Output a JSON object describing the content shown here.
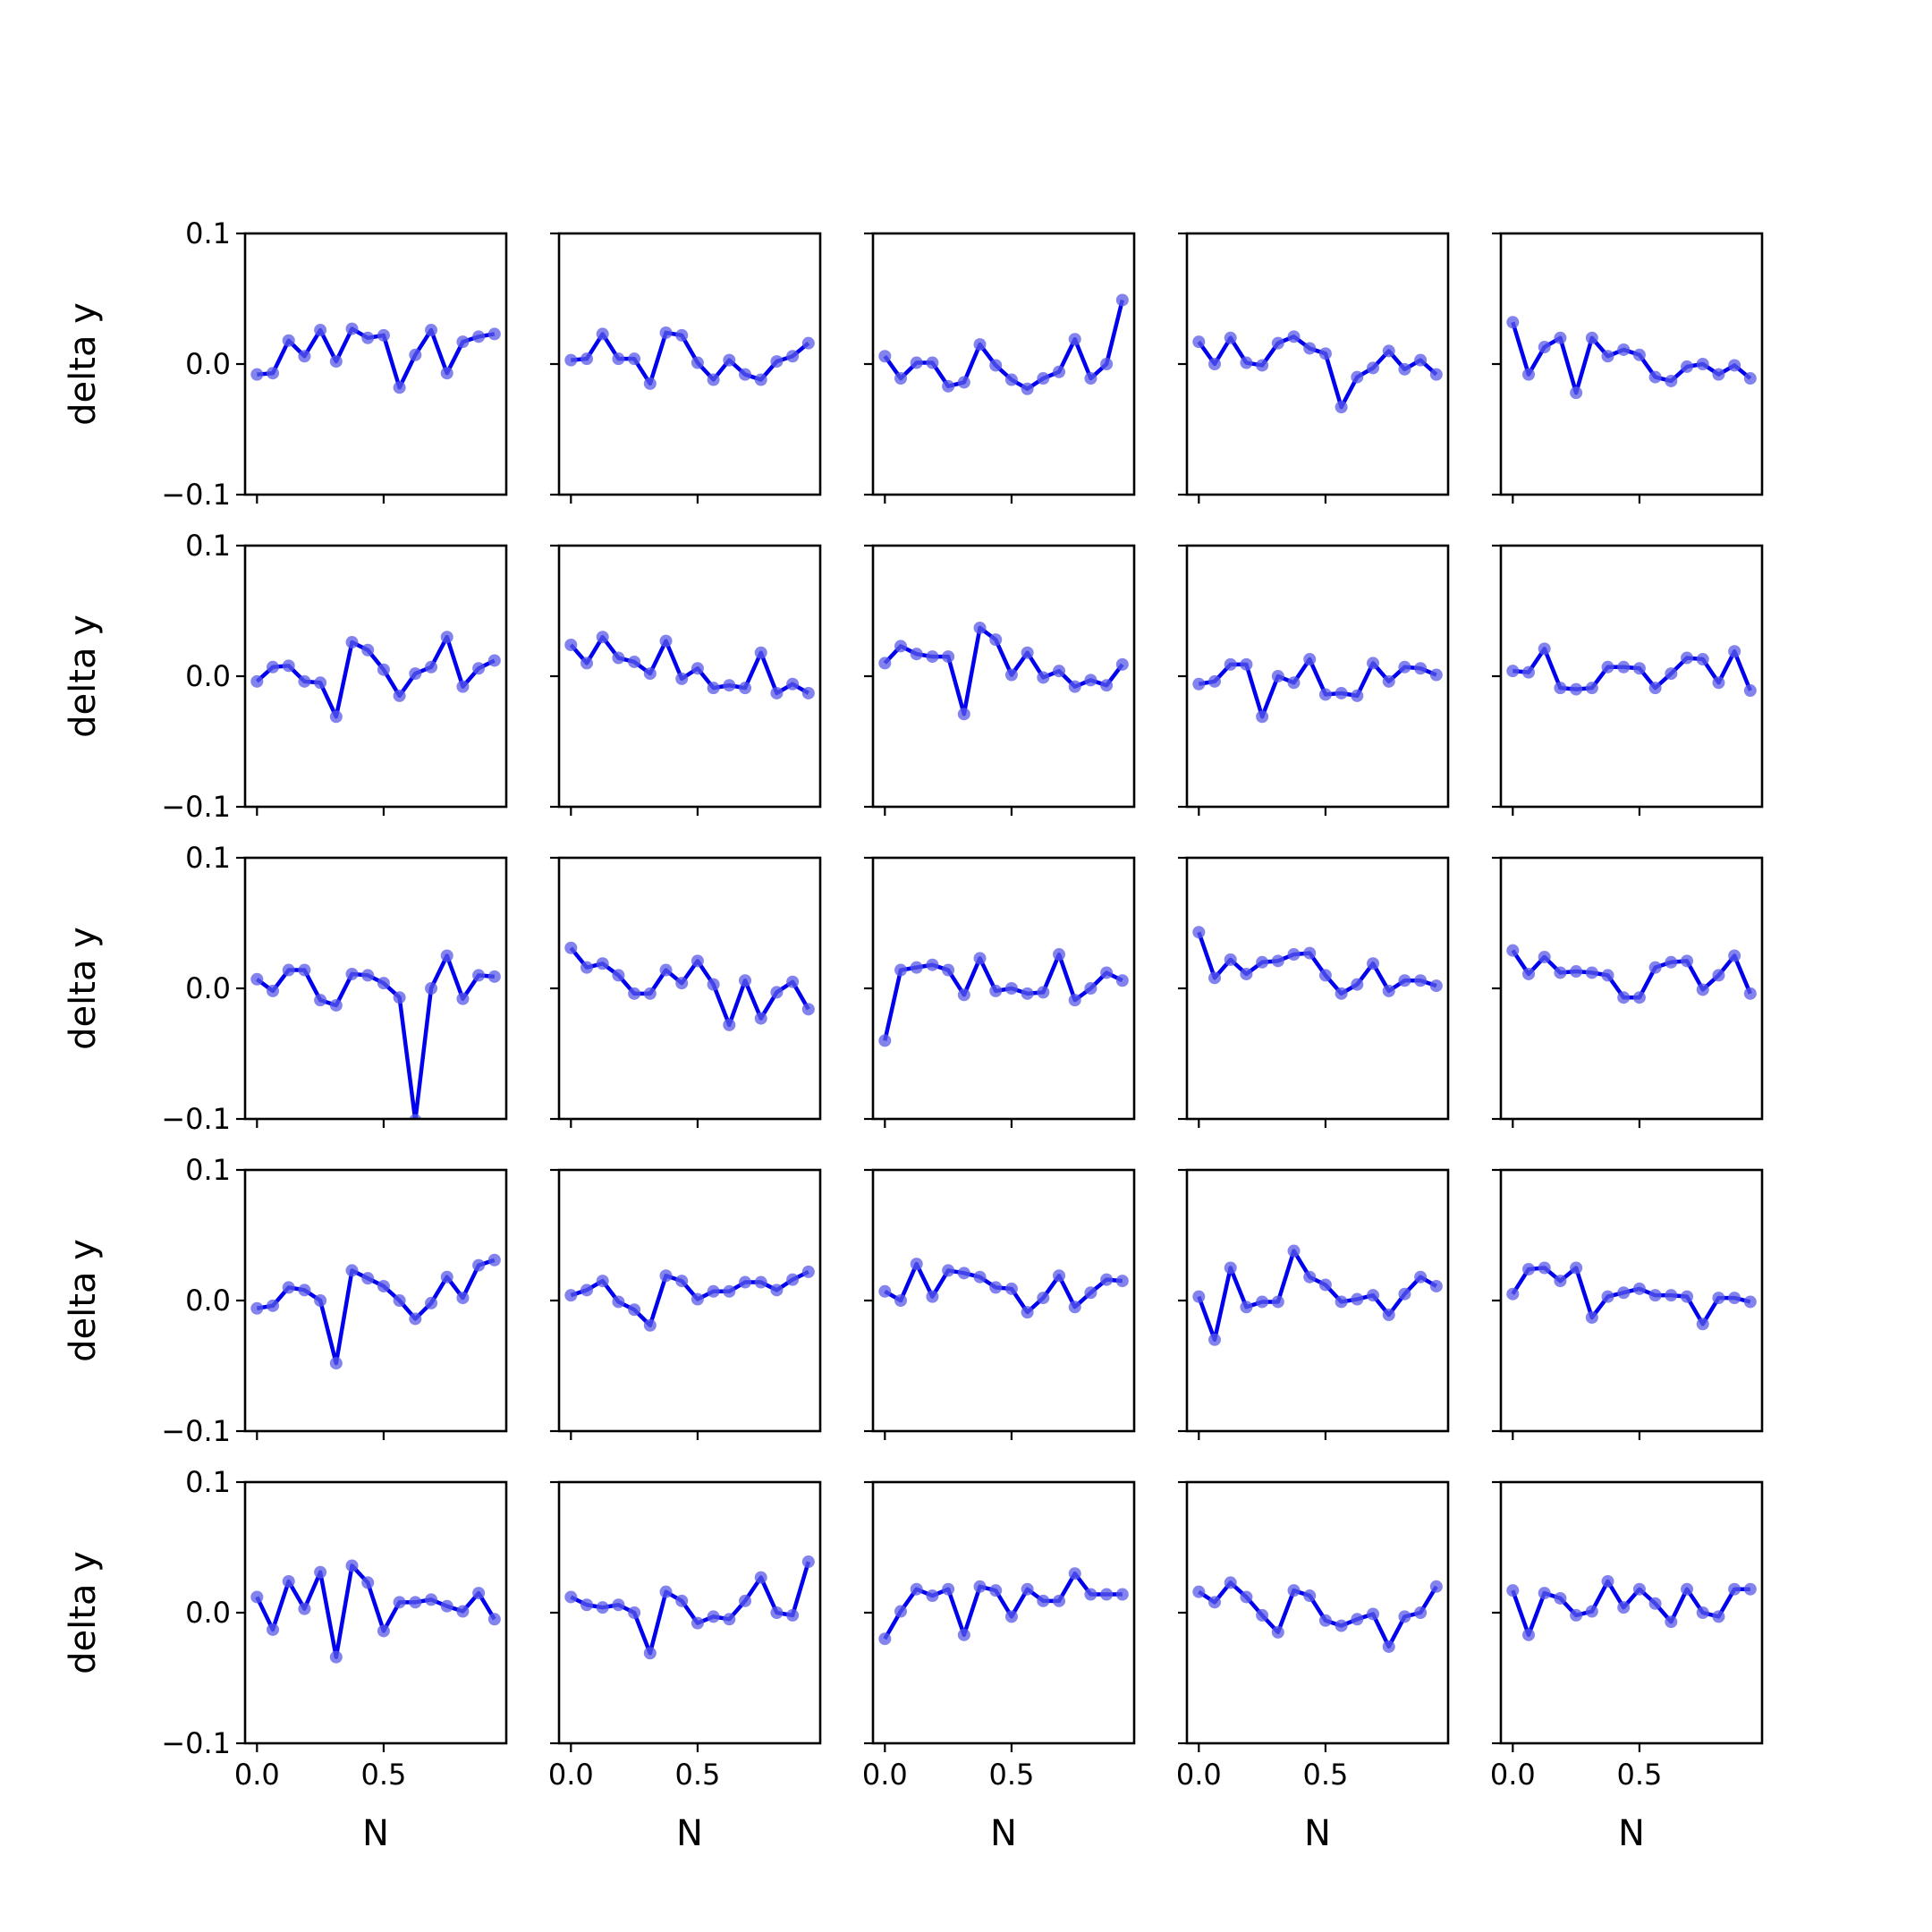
{
  "chart_data": {
    "type": "line",
    "layout": {
      "rows": 5,
      "cols": 5,
      "sharex": true,
      "sharey": true
    },
    "x": [
      0.0,
      0.0625,
      0.125,
      0.1875,
      0.25,
      0.3125,
      0.375,
      0.4375,
      0.5,
      0.5625,
      0.625,
      0.6875,
      0.75,
      0.8125,
      0.875,
      0.9375
    ],
    "xlabel": "N",
    "ylabel": "delta y",
    "xlim": [
      -0.047,
      0.984
    ],
    "ylim": [
      -0.1,
      0.1
    ],
    "xticks": [
      0.0,
      0.5
    ],
    "xtick_labels": [
      "0.0",
      "0.5"
    ],
    "yticks": [
      0.1,
      0.0,
      -0.1
    ],
    "ytick_labels": [
      "0.1",
      "0.0",
      "−0.1"
    ],
    "line_color": "#0000ee",
    "marker_color": "#5a5ae8",
    "grid": false,
    "panels": [
      {
        "values": [
          -0.008,
          -0.007,
          0.018,
          0.006,
          0.026,
          0.002,
          0.027,
          0.02,
          0.022,
          -0.018,
          0.007,
          0.026,
          -0.007,
          0.017,
          0.021,
          0.023
        ]
      },
      {
        "values": [
          0.003,
          0.004,
          0.023,
          0.004,
          0.004,
          -0.015,
          0.024,
          0.022,
          0.001,
          -0.012,
          0.003,
          -0.008,
          -0.012,
          0.002,
          0.006,
          0.016
        ]
      },
      {
        "values": [
          0.006,
          -0.011,
          0.001,
          0.001,
          -0.017,
          -0.014,
          0.015,
          -0.001,
          -0.012,
          -0.019,
          -0.011,
          -0.006,
          0.019,
          -0.011,
          0.0,
          0.049
        ]
      },
      {
        "values": [
          0.017,
          0.0,
          0.02,
          0.001,
          -0.001,
          0.016,
          0.021,
          0.012,
          0.008,
          -0.033,
          -0.01,
          -0.003,
          0.01,
          -0.004,
          0.003,
          -0.008
        ]
      },
      {
        "values": [
          0.032,
          -0.008,
          0.013,
          0.02,
          -0.022,
          0.02,
          0.006,
          0.011,
          0.007,
          -0.01,
          -0.013,
          -0.002,
          0.0,
          -0.008,
          -0.001,
          -0.011
        ]
      },
      {
        "values": [
          -0.004,
          0.007,
          0.008,
          -0.004,
          -0.005,
          -0.031,
          0.026,
          0.02,
          0.005,
          -0.015,
          0.002,
          0.007,
          0.03,
          -0.008,
          0.006,
          0.012
        ]
      },
      {
        "values": [
          0.024,
          0.01,
          0.03,
          0.014,
          0.011,
          0.002,
          0.027,
          -0.002,
          0.006,
          -0.009,
          -0.007,
          -0.009,
          0.018,
          -0.013,
          -0.006,
          -0.013
        ]
      },
      {
        "values": [
          0.01,
          0.023,
          0.017,
          0.015,
          0.015,
          -0.029,
          0.037,
          0.028,
          0.001,
          0.018,
          -0.001,
          0.004,
          -0.008,
          -0.003,
          -0.007,
          0.009
        ]
      },
      {
        "values": [
          -0.006,
          -0.004,
          0.009,
          0.009,
          -0.031,
          0.0,
          -0.005,
          0.013,
          -0.014,
          -0.013,
          -0.015,
          0.01,
          -0.004,
          0.007,
          0.006,
          0.001
        ]
      },
      {
        "values": [
          0.004,
          0.003,
          0.021,
          -0.009,
          -0.01,
          -0.009,
          0.007,
          0.007,
          0.006,
          -0.009,
          0.002,
          0.014,
          0.013,
          -0.005,
          0.019,
          -0.011
        ]
      },
      {
        "values": [
          0.007,
          -0.002,
          0.014,
          0.014,
          -0.009,
          -0.013,
          0.011,
          0.01,
          0.004,
          -0.007,
          -0.101,
          0.0,
          0.025,
          -0.008,
          0.01,
          0.009
        ]
      },
      {
        "values": [
          0.031,
          0.016,
          0.019,
          0.01,
          -0.004,
          -0.004,
          0.014,
          0.004,
          0.021,
          0.003,
          -0.028,
          0.006,
          -0.023,
          -0.003,
          0.005,
          -0.016
        ]
      },
      {
        "values": [
          -0.04,
          0.014,
          0.016,
          0.018,
          0.014,
          -0.005,
          0.023,
          -0.002,
          0.0,
          -0.004,
          -0.003,
          0.026,
          -0.009,
          0.0,
          0.012,
          0.006
        ]
      },
      {
        "values": [
          0.043,
          0.008,
          0.022,
          0.011,
          0.02,
          0.021,
          0.026,
          0.027,
          0.01,
          -0.004,
          0.003,
          0.019,
          -0.002,
          0.006,
          0.006,
          0.002
        ]
      },
      {
        "values": [
          0.029,
          0.011,
          0.024,
          0.012,
          0.013,
          0.012,
          0.01,
          -0.007,
          -0.007,
          0.016,
          0.02,
          0.021,
          -0.001,
          0.01,
          0.025,
          -0.004
        ]
      },
      {
        "values": [
          -0.006,
          -0.004,
          0.01,
          0.008,
          0.0,
          -0.048,
          0.023,
          0.017,
          0.011,
          0.0,
          -0.014,
          -0.002,
          0.018,
          0.002,
          0.027,
          0.031
        ]
      },
      {
        "values": [
          0.004,
          0.008,
          0.015,
          -0.001,
          -0.007,
          -0.019,
          0.019,
          0.015,
          0.001,
          0.007,
          0.007,
          0.014,
          0.014,
          0.008,
          0.016,
          0.022
        ]
      },
      {
        "values": [
          0.007,
          0.0,
          0.028,
          0.003,
          0.023,
          0.021,
          0.018,
          0.01,
          0.009,
          -0.009,
          0.002,
          0.019,
          -0.005,
          0.006,
          0.016,
          0.015
        ]
      },
      {
        "values": [
          0.003,
          -0.03,
          0.025,
          -0.005,
          -0.001,
          -0.001,
          0.038,
          0.018,
          0.012,
          -0.001,
          0.001,
          0.004,
          -0.011,
          0.005,
          0.018,
          0.011
        ]
      },
      {
        "values": [
          0.005,
          0.024,
          0.025,
          0.015,
          0.025,
          -0.013,
          0.003,
          0.006,
          0.009,
          0.004,
          0.004,
          0.003,
          -0.018,
          0.002,
          0.002,
          -0.001
        ]
      },
      {
        "values": [
          0.012,
          -0.013,
          0.024,
          0.003,
          0.031,
          -0.034,
          0.036,
          0.023,
          -0.014,
          0.008,
          0.008,
          0.01,
          0.005,
          0.001,
          0.015,
          -0.005
        ]
      },
      {
        "values": [
          0.012,
          0.006,
          0.004,
          0.006,
          0.0,
          -0.031,
          0.016,
          0.009,
          -0.008,
          -0.003,
          -0.005,
          0.009,
          0.027,
          0.0,
          -0.002,
          0.039
        ]
      },
      {
        "values": [
          -0.02,
          0.001,
          0.018,
          0.013,
          0.018,
          -0.017,
          0.02,
          0.017,
          -0.003,
          0.018,
          0.009,
          0.009,
          0.03,
          0.014,
          0.014,
          0.014
        ]
      },
      {
        "values": [
          0.016,
          0.008,
          0.023,
          0.012,
          -0.002,
          -0.015,
          0.017,
          0.013,
          -0.006,
          -0.01,
          -0.005,
          -0.001,
          -0.026,
          -0.003,
          0.0,
          0.02
        ]
      },
      {
        "values": [
          0.017,
          -0.017,
          0.015,
          0.011,
          -0.002,
          0.001,
          0.024,
          0.004,
          0.018,
          0.007,
          -0.007,
          0.018,
          0.0,
          -0.003,
          0.018,
          0.018
        ]
      }
    ]
  }
}
